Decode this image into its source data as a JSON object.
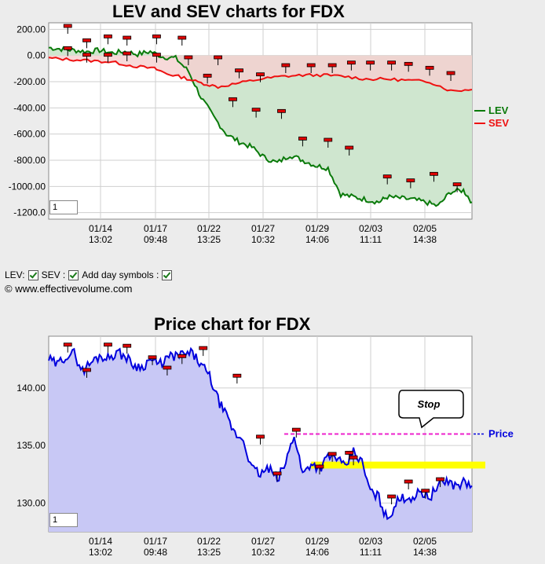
{
  "colors": {
    "lev": "#0a7a0a",
    "sev": "#ee1111",
    "lev_fill": "#cfe6cf",
    "sev_fill": "#f5cfcf",
    "sev_fill_below": "#d8c7b8",
    "price": "#0000dd",
    "price_fill": "#c8c8f5",
    "stop": "#ee22cc",
    "band": "#ffff00"
  },
  "chart_data": [
    {
      "type": "line",
      "title": "LEV and SEV charts for FDX",
      "ylim": [
        -1250,
        250
      ],
      "y_ticks": [
        "200.00",
        "0.00",
        "-200.00",
        "-400.00",
        "-600.00",
        "-800.00",
        "-1000.00",
        "-1200.0"
      ],
      "y_tick_values": [
        200,
        0,
        -200,
        -400,
        -600,
        -800,
        -1000,
        -1200
      ],
      "x_ticks": [
        {
          "date": "01/14",
          "time": "13:02"
        },
        {
          "date": "01/17",
          "time": "09:48"
        },
        {
          "date": "01/22",
          "time": "13:25"
        },
        {
          "date": "01/27",
          "time": "10:32"
        },
        {
          "date": "01/29",
          "time": "14:06"
        },
        {
          "date": "02/03",
          "time": "11:11"
        },
        {
          "date": "02/05",
          "time": "14:38"
        }
      ],
      "xlim": [
        0,
        100
      ],
      "series": [
        {
          "name": "LEV",
          "x": [
            0,
            3,
            6,
            9,
            12,
            15,
            18,
            21,
            24,
            27,
            30,
            33,
            36,
            39,
            42,
            45,
            48,
            51,
            54,
            57,
            60,
            63,
            66,
            69,
            72,
            75,
            78,
            80,
            83,
            86,
            89,
            92,
            95,
            98,
            100
          ],
          "values": [
            60,
            50,
            40,
            30,
            40,
            20,
            30,
            10,
            30,
            -10,
            -20,
            -120,
            -320,
            -470,
            -600,
            -660,
            -700,
            -780,
            -820,
            -760,
            -800,
            -840,
            -860,
            -1060,
            -1080,
            -1100,
            -1120,
            -1080,
            -1090,
            -1100,
            -1120,
            -1150,
            -1040,
            -1030,
            -1120
          ]
        },
        {
          "name": "SEV",
          "x": [
            0,
            5,
            10,
            15,
            20,
            25,
            28,
            32,
            36,
            40,
            45,
            50,
            55,
            60,
            65,
            70,
            75,
            80,
            85,
            90,
            95,
            100
          ],
          "values": [
            -20,
            -30,
            -40,
            -50,
            -80,
            -100,
            -140,
            -170,
            -210,
            -240,
            -210,
            -180,
            -160,
            -150,
            -150,
            -160,
            -180,
            -180,
            -190,
            -200,
            -270,
            -260
          ]
        }
      ],
      "day_markers": {
        "LEV": [
          {
            "x": 4.5,
            "y": 220
          },
          {
            "x": 9,
            "y": 110
          },
          {
            "x": 14,
            "y": 140
          },
          {
            "x": 18.5,
            "y": 130
          },
          {
            "x": 25.5,
            "y": 140
          },
          {
            "x": 31.5,
            "y": 130
          },
          {
            "x": 37.5,
            "y": -160
          },
          {
            "x": 43.5,
            "y": -340
          },
          {
            "x": 49,
            "y": -420
          },
          {
            "x": 55,
            "y": -430
          },
          {
            "x": 60,
            "y": -640
          },
          {
            "x": 66,
            "y": -650
          },
          {
            "x": 71,
            "y": -710
          },
          {
            "x": 80,
            "y": -930
          },
          {
            "x": 85.5,
            "y": -960
          },
          {
            "x": 91,
            "y": -910
          },
          {
            "x": 96.5,
            "y": -990
          }
        ],
        "SEV": [
          {
            "x": 4.5,
            "y": 50
          },
          {
            "x": 9,
            "y": 0
          },
          {
            "x": 14,
            "y": 0
          },
          {
            "x": 18.5,
            "y": 10
          },
          {
            "x": 25.5,
            "y": 0
          },
          {
            "x": 33,
            "y": -20
          },
          {
            "x": 40,
            "y": -20
          },
          {
            "x": 45,
            "y": -120
          },
          {
            "x": 50,
            "y": -150
          },
          {
            "x": 56,
            "y": -80
          },
          {
            "x": 62,
            "y": -80
          },
          {
            "x": 67,
            "y": -80
          },
          {
            "x": 71.5,
            "y": -60
          },
          {
            "x": 76,
            "y": -60
          },
          {
            "x": 81,
            "y": -60
          },
          {
            "x": 85,
            "y": -70
          },
          {
            "x": 90,
            "y": -100
          },
          {
            "x": 95,
            "y": -140
          }
        ]
      },
      "legend": [
        "LEV",
        "SEV"
      ],
      "legend_position": "right",
      "grid": true,
      "zoom_value": "1"
    },
    {
      "type": "line",
      "title": "Price chart for FDX",
      "ylim": [
        127.5,
        144.5
      ],
      "y_ticks": [
        "140.00",
        "135.00",
        "130.00"
      ],
      "y_tick_values": [
        140,
        135,
        130
      ],
      "x_ticks": [
        {
          "date": "01/14",
          "time": "13:02"
        },
        {
          "date": "01/17",
          "time": "09:48"
        },
        {
          "date": "01/22",
          "time": "13:25"
        },
        {
          "date": "01/27",
          "time": "10:32"
        },
        {
          "date": "01/29",
          "time": "14:06"
        },
        {
          "date": "02/03",
          "time": "11:11"
        },
        {
          "date": "02/05",
          "time": "14:38"
        }
      ],
      "xlim": [
        0,
        100
      ],
      "series": [
        {
          "name": "Price",
          "x": [
            0,
            2,
            4,
            6,
            8,
            10,
            12,
            14,
            16,
            18,
            20,
            22,
            24,
            26,
            28,
            30,
            32,
            34,
            36,
            38,
            40,
            42,
            44,
            46,
            48,
            50,
            52,
            54,
            56,
            58,
            60,
            62,
            64,
            66,
            68,
            70,
            72,
            74,
            76,
            78,
            80,
            82,
            84,
            86,
            88,
            90,
            92,
            94,
            96,
            98,
            100
          ],
          "values": [
            142.5,
            142.0,
            142.8,
            143.0,
            141.5,
            142.2,
            142.8,
            142.6,
            143.1,
            142.8,
            142.0,
            141.8,
            142.5,
            142.0,
            142.6,
            142.8,
            142.9,
            143.0,
            142.0,
            141.0,
            139.0,
            137.5,
            136.0,
            135.5,
            133.0,
            132.5,
            133.0,
            132.0,
            133.5,
            136.0,
            132.5,
            133.5,
            133.0,
            134.0,
            134.0,
            133.0,
            134.5,
            133.5,
            131.0,
            130.5,
            128.5,
            130.0,
            130.5,
            130.5,
            131.0,
            130.5,
            131.5,
            132.0,
            131.5,
            131.8,
            131.5
          ]
        }
      ],
      "day_markers": [
        {
          "x": 4.5,
          "y": 143.7
        },
        {
          "x": 9,
          "y": 141.5
        },
        {
          "x": 14,
          "y": 143.7
        },
        {
          "x": 18.5,
          "y": 143.6
        },
        {
          "x": 24.5,
          "y": 142.6
        },
        {
          "x": 28,
          "y": 141.7
        },
        {
          "x": 31.5,
          "y": 142.7
        },
        {
          "x": 36.5,
          "y": 143.4
        },
        {
          "x": 44.5,
          "y": 141.0
        },
        {
          "x": 50,
          "y": 135.7
        },
        {
          "x": 54,
          "y": 132.5
        },
        {
          "x": 58.5,
          "y": 136.3
        },
        {
          "x": 64,
          "y": 133.1
        },
        {
          "x": 67,
          "y": 134.2
        },
        {
          "x": 71,
          "y": 134.3
        },
        {
          "x": 72,
          "y": 133.9
        },
        {
          "x": 81,
          "y": 130.5
        },
        {
          "x": 85,
          "y": 131.8
        },
        {
          "x": 89,
          "y": 131.0
        },
        {
          "x": 92.5,
          "y": 132.0
        }
      ],
      "stop_level": 136.0,
      "stop_label": "Stop",
      "price_label": "Price",
      "band": {
        "low": 133.0,
        "high": 133.6,
        "x_start": 62
      },
      "grid": true,
      "zoom_value": "1"
    }
  ],
  "options": {
    "lev_label": "LEV:",
    "sev_label": "SEV :",
    "day_symbols_label": "Add day symbols :"
  },
  "copyright": "© www.effectivevolume.com"
}
